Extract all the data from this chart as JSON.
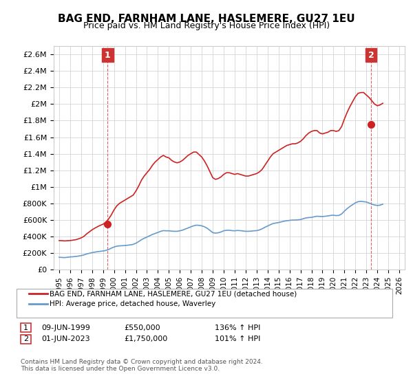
{
  "title": "BAG END, FARNHAM LANE, HASLEMERE, GU27 1EU",
  "subtitle": "Price paid vs. HM Land Registry's House Price Index (HPI)",
  "ylabel": "",
  "ylim": [
    0,
    2700000
  ],
  "yticks": [
    0,
    200000,
    400000,
    600000,
    800000,
    1000000,
    1200000,
    1400000,
    1600000,
    1800000,
    2000000,
    2200000,
    2400000,
    2600000
  ],
  "ytick_labels": [
    "£0",
    "£200K",
    "£400K",
    "£600K",
    "£800K",
    "£1M",
    "£1.2M",
    "£1.4M",
    "£1.6M",
    "£1.8M",
    "£2M",
    "£2.2M",
    "£2.4M",
    "£2.6M"
  ],
  "hpi_color": "#6699cc",
  "price_color": "#cc2222",
  "marker_color": "#cc2222",
  "annotation_box_color": "#cc3333",
  "background_color": "#ffffff",
  "grid_color": "#cccccc",
  "legend_label_price": "BAG END, FARNHAM LANE, HASLEMERE, GU27 1EU (detached house)",
  "legend_label_hpi": "HPI: Average price, detached house, Waverley",
  "annotation1_num": "1",
  "annotation1_date": "09-JUN-1999",
  "annotation1_price": "£550,000",
  "annotation1_hpi": "136% ↑ HPI",
  "annotation2_num": "2",
  "annotation2_date": "01-JUN-2023",
  "annotation2_price": "£1,750,000",
  "annotation2_hpi": "101% ↑ HPI",
  "footer": "Contains HM Land Registry data © Crown copyright and database right 2024.\nThis data is licensed under the Open Government Licence v3.0.",
  "hpi_data_x": [
    1995.0,
    1995.25,
    1995.5,
    1995.75,
    1996.0,
    1996.25,
    1996.5,
    1996.75,
    1997.0,
    1997.25,
    1997.5,
    1997.75,
    1998.0,
    1998.25,
    1998.5,
    1998.75,
    1999.0,
    1999.25,
    1999.5,
    1999.75,
    2000.0,
    2000.25,
    2000.5,
    2000.75,
    2001.0,
    2001.25,
    2001.5,
    2001.75,
    2002.0,
    2002.25,
    2002.5,
    2002.75,
    2003.0,
    2003.25,
    2003.5,
    2003.75,
    2004.0,
    2004.25,
    2004.5,
    2004.75,
    2005.0,
    2005.25,
    2005.5,
    2005.75,
    2006.0,
    2006.25,
    2006.5,
    2006.75,
    2007.0,
    2007.25,
    2007.5,
    2007.75,
    2008.0,
    2008.25,
    2008.5,
    2008.75,
    2009.0,
    2009.25,
    2009.5,
    2009.75,
    2010.0,
    2010.25,
    2010.5,
    2010.75,
    2011.0,
    2011.25,
    2011.5,
    2011.75,
    2012.0,
    2012.25,
    2012.5,
    2012.75,
    2013.0,
    2013.25,
    2013.5,
    2013.75,
    2014.0,
    2014.25,
    2014.5,
    2014.75,
    2015.0,
    2015.25,
    2015.5,
    2015.75,
    2016.0,
    2016.25,
    2016.5,
    2016.75,
    2017.0,
    2017.25,
    2017.5,
    2017.75,
    2018.0,
    2018.25,
    2018.5,
    2018.75,
    2019.0,
    2019.25,
    2019.5,
    2019.75,
    2020.0,
    2020.25,
    2020.5,
    2020.75,
    2021.0,
    2021.25,
    2021.5,
    2021.75,
    2022.0,
    2022.25,
    2022.5,
    2022.75,
    2023.0,
    2023.25,
    2023.5,
    2023.75,
    2024.0,
    2024.25,
    2024.5
  ],
  "hpi_data_y": [
    148000,
    146000,
    144000,
    148000,
    152000,
    154000,
    158000,
    162000,
    168000,
    176000,
    188000,
    196000,
    204000,
    210000,
    216000,
    220000,
    224000,
    230000,
    242000,
    258000,
    272000,
    282000,
    286000,
    288000,
    290000,
    294000,
    298000,
    304000,
    318000,
    338000,
    360000,
    378000,
    392000,
    408000,
    424000,
    436000,
    448000,
    462000,
    470000,
    468000,
    468000,
    464000,
    462000,
    462000,
    468000,
    476000,
    490000,
    502000,
    516000,
    528000,
    536000,
    534000,
    528000,
    516000,
    498000,
    472000,
    446000,
    440000,
    444000,
    454000,
    468000,
    474000,
    474000,
    470000,
    468000,
    472000,
    470000,
    466000,
    462000,
    462000,
    464000,
    468000,
    470000,
    478000,
    492000,
    510000,
    526000,
    542000,
    556000,
    562000,
    568000,
    576000,
    584000,
    590000,
    594000,
    598000,
    598000,
    600000,
    604000,
    614000,
    624000,
    628000,
    630000,
    638000,
    644000,
    642000,
    640000,
    644000,
    648000,
    654000,
    656000,
    652000,
    654000,
    672000,
    706000,
    736000,
    762000,
    784000,
    806000,
    820000,
    824000,
    820000,
    816000,
    804000,
    790000,
    780000,
    774000,
    778000,
    790000
  ],
  "price_data_x": [
    1995.0,
    1995.25,
    1995.5,
    1995.75,
    1996.0,
    1996.25,
    1996.5,
    1996.75,
    1997.0,
    1997.25,
    1997.5,
    1997.75,
    1998.0,
    1998.25,
    1998.5,
    1998.75,
    1999.0,
    1999.25,
    1999.5,
    1999.75,
    2000.0,
    2000.25,
    2000.5,
    2000.75,
    2001.0,
    2001.25,
    2001.5,
    2001.75,
    2002.0,
    2002.25,
    2002.5,
    2002.75,
    2003.0,
    2003.25,
    2003.5,
    2003.75,
    2004.0,
    2004.25,
    2004.5,
    2004.75,
    2005.0,
    2005.25,
    2005.5,
    2005.75,
    2006.0,
    2006.25,
    2006.5,
    2006.75,
    2007.0,
    2007.25,
    2007.5,
    2007.75,
    2008.0,
    2008.25,
    2008.5,
    2008.75,
    2009.0,
    2009.25,
    2009.5,
    2009.75,
    2010.0,
    2010.25,
    2010.5,
    2010.75,
    2011.0,
    2011.25,
    2011.5,
    2011.75,
    2012.0,
    2012.25,
    2012.5,
    2012.75,
    2013.0,
    2013.25,
    2013.5,
    2013.75,
    2014.0,
    2014.25,
    2014.5,
    2014.75,
    2015.0,
    2015.25,
    2015.5,
    2015.75,
    2016.0,
    2016.25,
    2016.5,
    2016.75,
    2017.0,
    2017.25,
    2017.5,
    2017.75,
    2018.0,
    2018.25,
    2018.5,
    2018.75,
    2019.0,
    2019.25,
    2019.5,
    2019.75,
    2020.0,
    2020.25,
    2020.5,
    2020.75,
    2021.0,
    2021.25,
    2021.5,
    2021.75,
    2022.0,
    2022.25,
    2022.5,
    2022.75,
    2023.0,
    2023.25,
    2023.5,
    2023.75,
    2024.0,
    2024.25,
    2024.5
  ],
  "price_data_y": [
    350000,
    348000,
    346000,
    348000,
    350000,
    355000,
    360000,
    370000,
    382000,
    400000,
    430000,
    455000,
    480000,
    500000,
    518000,
    534000,
    548000,
    570000,
    610000,
    660000,
    720000,
    770000,
    800000,
    820000,
    840000,
    860000,
    880000,
    900000,
    950000,
    1010000,
    1080000,
    1130000,
    1170000,
    1210000,
    1260000,
    1300000,
    1330000,
    1360000,
    1380000,
    1360000,
    1350000,
    1320000,
    1300000,
    1290000,
    1300000,
    1320000,
    1350000,
    1380000,
    1400000,
    1420000,
    1420000,
    1390000,
    1360000,
    1310000,
    1250000,
    1180000,
    1110000,
    1090000,
    1100000,
    1120000,
    1150000,
    1170000,
    1170000,
    1160000,
    1150000,
    1160000,
    1150000,
    1140000,
    1130000,
    1130000,
    1140000,
    1150000,
    1160000,
    1180000,
    1210000,
    1260000,
    1310000,
    1360000,
    1400000,
    1420000,
    1440000,
    1460000,
    1480000,
    1500000,
    1510000,
    1520000,
    1520000,
    1530000,
    1550000,
    1580000,
    1620000,
    1650000,
    1670000,
    1680000,
    1680000,
    1650000,
    1640000,
    1650000,
    1660000,
    1680000,
    1680000,
    1670000,
    1680000,
    1730000,
    1820000,
    1900000,
    1970000,
    2030000,
    2090000,
    2130000,
    2140000,
    2140000,
    2110000,
    2080000,
    2040000,
    2000000,
    1980000,
    1990000,
    2010000
  ],
  "sale1_x": 1999.42,
  "sale1_y": 550000,
  "sale2_x": 2023.42,
  "sale2_y": 1750000,
  "vline1_x": 1999.42,
  "vline2_x": 2023.42,
  "xtick_start": 1995,
  "xtick_end": 2027,
  "xtick_step": 1
}
